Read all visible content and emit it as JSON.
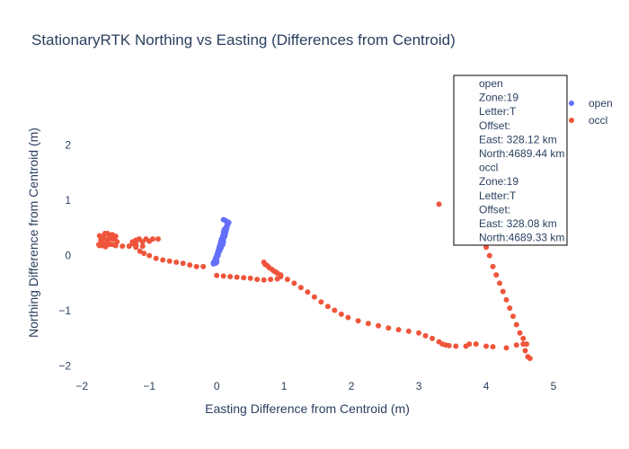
{
  "chart_data": {
    "type": "scatter",
    "title": "StationaryRTK Northing vs Easting (Differences from Centroid)",
    "xlabel": "Easting Difference from Centroid (m)",
    "ylabel": "Northing Difference from Centroid (m)",
    "xlim": [
      -2.15,
      5.0
    ],
    "ylim": [
      -2.2,
      3.0
    ],
    "xticks": [
      -2,
      -1,
      0,
      1,
      2,
      3,
      4,
      5
    ],
    "xtick_labels": [
      "−2",
      "−1",
      "0",
      "1",
      "2",
      "3",
      "4",
      "5"
    ],
    "yticks": [
      -2,
      -1,
      0,
      1,
      2
    ],
    "ytick_labels": [
      "−2",
      "−1",
      "0",
      "1",
      "2"
    ],
    "legend_position": "top-right",
    "series": [
      {
        "name": "open",
        "color": "#636efa",
        "points": [
          [
            -0.05,
            -0.15
          ],
          [
            -0.02,
            -0.14
          ],
          [
            0.0,
            -0.12
          ],
          [
            0.0,
            -0.08
          ],
          [
            0.0,
            -0.03
          ],
          [
            0.02,
            0.0
          ],
          [
            0.03,
            0.05
          ],
          [
            0.05,
            0.1
          ],
          [
            0.07,
            0.15
          ],
          [
            0.09,
            0.2
          ],
          [
            0.1,
            0.25
          ],
          [
            0.1,
            0.3
          ],
          [
            0.12,
            0.35
          ],
          [
            0.13,
            0.4
          ],
          [
            0.14,
            0.45
          ],
          [
            0.15,
            0.5
          ],
          [
            0.16,
            0.55
          ],
          [
            0.18,
            0.6
          ],
          [
            0.15,
            0.62
          ],
          [
            0.12,
            0.64
          ],
          [
            0.1,
            0.65
          ],
          [
            0.14,
            0.62
          ],
          [
            0.17,
            0.58
          ],
          [
            0.14,
            0.52
          ],
          [
            0.11,
            0.47
          ],
          [
            0.1,
            0.42
          ],
          [
            0.09,
            0.36
          ],
          [
            0.07,
            0.3
          ],
          [
            0.06,
            0.25
          ],
          [
            0.05,
            0.2
          ],
          [
            0.04,
            0.16
          ],
          [
            0.03,
            0.12
          ],
          [
            0.02,
            0.08
          ],
          [
            0.01,
            0.04
          ],
          [
            0.0,
            0.0
          ],
          [
            -0.02,
            -0.05
          ],
          [
            -0.03,
            -0.1
          ],
          [
            -0.05,
            -0.13
          ]
        ]
      },
      {
        "name": "occl",
        "color": "#ef553b",
        "points": [
          [
            -1.75,
            0.2
          ],
          [
            -1.7,
            0.18
          ],
          [
            -1.65,
            0.2
          ],
          [
            -1.72,
            0.28
          ],
          [
            -1.68,
            0.35
          ],
          [
            -1.62,
            0.4
          ],
          [
            -1.55,
            0.38
          ],
          [
            -1.5,
            0.35
          ],
          [
            -1.55,
            0.3
          ],
          [
            -1.62,
            0.28
          ],
          [
            -1.7,
            0.3
          ],
          [
            -1.74,
            0.36
          ],
          [
            -1.66,
            0.4
          ],
          [
            -1.58,
            0.35
          ],
          [
            -1.6,
            0.22
          ],
          [
            -1.65,
            0.2
          ],
          [
            -1.72,
            0.22
          ],
          [
            -1.68,
            0.3
          ],
          [
            -1.6,
            0.32
          ],
          [
            -1.52,
            0.3
          ],
          [
            -1.48,
            0.25
          ],
          [
            -1.55,
            0.2
          ],
          [
            -1.65,
            0.16
          ],
          [
            -1.74,
            0.18
          ],
          [
            -1.7,
            0.25
          ],
          [
            -1.6,
            0.2
          ],
          [
            -1.5,
            0.18
          ],
          [
            -1.4,
            0.17
          ],
          [
            -1.3,
            0.17
          ],
          [
            -1.2,
            0.17
          ],
          [
            -1.1,
            0.17
          ],
          [
            -1.2,
            0.2
          ],
          [
            -1.25,
            0.25
          ],
          [
            -1.2,
            0.28
          ],
          [
            -1.15,
            0.3
          ],
          [
            -1.05,
            0.3
          ],
          [
            -0.95,
            0.3
          ],
          [
            -0.87,
            0.3
          ],
          [
            -1.0,
            0.26
          ],
          [
            -1.1,
            0.25
          ],
          [
            -1.18,
            0.28
          ],
          [
            -1.25,
            0.22
          ],
          [
            -1.2,
            0.15
          ],
          [
            -1.14,
            0.08
          ],
          [
            -1.08,
            0.04
          ],
          [
            -1.0,
            0.0
          ],
          [
            -0.9,
            -0.05
          ],
          [
            -0.8,
            -0.08
          ],
          [
            -0.7,
            -0.1
          ],
          [
            -0.6,
            -0.12
          ],
          [
            -0.5,
            -0.14
          ],
          [
            -0.4,
            -0.17
          ],
          [
            -0.3,
            -0.2
          ],
          [
            -0.2,
            -0.2
          ],
          [
            0.0,
            -0.36
          ],
          [
            0.1,
            -0.37
          ],
          [
            0.2,
            -0.38
          ],
          [
            0.3,
            -0.39
          ],
          [
            0.4,
            -0.4
          ],
          [
            0.5,
            -0.41
          ],
          [
            0.6,
            -0.43
          ],
          [
            0.7,
            -0.44
          ],
          [
            0.8,
            -0.43
          ],
          [
            0.9,
            -0.42
          ],
          [
            0.95,
            -0.38
          ],
          [
            0.9,
            -0.32
          ],
          [
            0.85,
            -0.28
          ],
          [
            0.78,
            -0.22
          ],
          [
            0.72,
            -0.16
          ],
          [
            0.7,
            -0.12
          ],
          [
            0.75,
            -0.18
          ],
          [
            0.82,
            -0.25
          ],
          [
            0.88,
            -0.3
          ],
          [
            0.95,
            -0.35
          ],
          [
            1.05,
            -0.43
          ],
          [
            1.15,
            -0.5
          ],
          [
            1.25,
            -0.58
          ],
          [
            1.35,
            -0.66
          ],
          [
            1.45,
            -0.75
          ],
          [
            1.55,
            -0.84
          ],
          [
            1.65,
            -0.92
          ],
          [
            1.75,
            -0.99
          ],
          [
            1.85,
            -1.06
          ],
          [
            1.95,
            -1.12
          ],
          [
            2.1,
            -1.18
          ],
          [
            2.25,
            -1.23
          ],
          [
            2.4,
            -1.27
          ],
          [
            2.55,
            -1.31
          ],
          [
            2.7,
            -1.34
          ],
          [
            2.85,
            -1.37
          ],
          [
            3.0,
            -1.4
          ],
          [
            3.1,
            -1.45
          ],
          [
            3.2,
            -1.5
          ],
          [
            3.3,
            -1.56
          ],
          [
            3.35,
            -1.6
          ],
          [
            3.4,
            -1.62
          ],
          [
            3.45,
            -1.63
          ],
          [
            3.55,
            -1.64
          ],
          [
            3.7,
            -1.64
          ],
          [
            3.75,
            -1.6
          ],
          [
            3.85,
            -1.6
          ],
          [
            4.0,
            -1.64
          ],
          [
            4.1,
            -1.65
          ],
          [
            4.3,
            -1.67
          ],
          [
            4.45,
            -1.62
          ],
          [
            4.55,
            -1.6
          ],
          [
            4.58,
            -1.72
          ],
          [
            4.62,
            -1.83
          ],
          [
            4.65,
            -1.86
          ],
          [
            4.6,
            -1.6
          ],
          [
            4.55,
            -1.5
          ],
          [
            4.5,
            -1.4
          ],
          [
            4.45,
            -1.25
          ],
          [
            4.4,
            -1.1
          ],
          [
            4.35,
            -0.95
          ],
          [
            4.3,
            -0.8
          ],
          [
            4.25,
            -0.65
          ],
          [
            4.2,
            -0.5
          ],
          [
            4.15,
            -0.35
          ],
          [
            4.1,
            -0.2
          ],
          [
            4.05,
            0.0
          ],
          [
            4.0,
            0.15
          ],
          [
            3.95,
            0.3
          ],
          [
            3.8,
            0.42
          ],
          [
            3.75,
            0.55
          ],
          [
            3.3,
            0.93
          ],
          [
            3.55,
            0.96
          ],
          [
            3.7,
            0.97
          ],
          [
            3.85,
            0.98
          ],
          [
            4.0,
            1.0
          ],
          [
            4.1,
            1.05
          ],
          [
            4.2,
            1.12
          ],
          [
            4.25,
            1.3
          ],
          [
            4.28,
            1.5
          ],
          [
            4.3,
            1.7
          ],
          [
            4.32,
            1.9
          ],
          [
            4.34,
            2.1
          ],
          [
            4.36,
            2.25
          ],
          [
            4.38,
            2.4
          ],
          [
            4.1,
            2.6
          ],
          [
            4.15,
            2.55
          ]
        ]
      }
    ],
    "annotation_lines": [
      "open",
      "Zone:19",
      "Letter:T",
      "Offset:",
      "East: 328.12 km",
      "North:4689.44 km",
      "occl",
      "Zone:19",
      "Letter:T",
      "Offset:",
      "East: 328.08 km",
      "North:4689.33 km"
    ]
  }
}
